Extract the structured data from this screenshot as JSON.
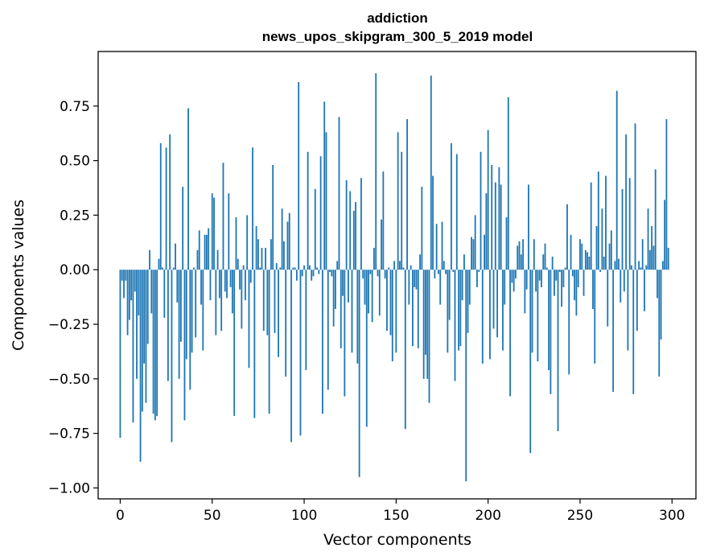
{
  "chart_data": {
    "type": "bar",
    "title": "addiction",
    "subtitle": "news_upos_skipgram_300_5_2019 model",
    "xlabel": "Vector components",
    "ylabel": "Components values",
    "xlim": [
      -12,
      313
    ],
    "ylim": [
      -1.05,
      1.0
    ],
    "xticks": [
      0,
      50,
      100,
      150,
      200,
      250,
      300
    ],
    "xtick_labels": [
      "0",
      "50",
      "100",
      "150",
      "200",
      "250",
      "300"
    ],
    "yticks": [
      0.75,
      0.5,
      0.25,
      0.0,
      -0.25,
      -0.5,
      -0.75,
      -1.0
    ],
    "ytick_labels": [
      "0.75",
      "0.50",
      "0.25",
      "0.00",
      "−0.25",
      "−0.50",
      "−0.75",
      "−1.00"
    ],
    "grid": false,
    "color": "#1f77b4",
    "values": [
      -0.77,
      -0.05,
      -0.13,
      -0.05,
      -0.3,
      -0.23,
      -0.14,
      -0.7,
      -0.1,
      -0.5,
      -0.21,
      -0.88,
      -0.65,
      -0.43,
      -0.61,
      -0.34,
      0.09,
      -0.2,
      -0.66,
      -0.69,
      -0.67,
      0.05,
      0.58,
      0.01,
      -0.22,
      0.56,
      -0.51,
      0.62,
      -0.79,
      0.01,
      0.12,
      -0.15,
      -0.5,
      -0.33,
      0.38,
      -0.69,
      -0.41,
      0.74,
      -0.55,
      -0.38,
      0.01,
      -0.31,
      0.09,
      0.18,
      -0.16,
      -0.37,
      0.16,
      0.16,
      0.19,
      -0.14,
      0.35,
      0.33,
      -0.3,
      0.09,
      -0.13,
      -0.28,
      0.49,
      -0.1,
      -0.13,
      0.35,
      -0.08,
      -0.2,
      -0.67,
      0.24,
      0.05,
      -0.09,
      -0.27,
      0.02,
      -0.14,
      0.25,
      -0.45,
      -0.06,
      0.56,
      -0.68,
      0.2,
      0.14,
      0.01,
      0.1,
      -0.28,
      0.1,
      -0.3,
      -0.66,
      0.14,
      0.48,
      -0.29,
      0.03,
      -0.4,
      0.01,
      0.28,
      0.13,
      -0.49,
      0.22,
      0.26,
      -0.79,
      0.01,
      0.01,
      -0.05,
      0.86,
      -0.76,
      -0.03,
      0.02,
      -0.46,
      0.54,
      0.02,
      -0.05,
      -0.03,
      0.37,
      0.01,
      -0.02,
      0.52,
      -0.66,
      0.77,
      0.63,
      -0.55,
      -0.01,
      -0.03,
      -0.26,
      -0.18,
      0.04,
      0.7,
      -0.36,
      -0.12,
      -0.58,
      0.41,
      -0.15,
      0.36,
      -0.38,
      0.27,
      0.31,
      -0.43,
      -0.95,
      0.42,
      -0.04,
      -0.16,
      -0.72,
      -0.2,
      -0.02,
      -0.24,
      0.1,
      0.9,
      -0.03,
      -0.21,
      0.23,
      0.45,
      -0.04,
      -0.28,
      0.01,
      -0.3,
      -0.42,
      0.04,
      -0.38,
      0.63,
      0.04,
      0.54,
      0.01,
      -0.73,
      0.69,
      -0.16,
      0.02,
      -0.35,
      -0.08,
      -0.09,
      -0.36,
      0.07,
      0.38,
      -0.5,
      -0.39,
      -0.5,
      -0.61,
      0.89,
      0.43,
      -0.04,
      0.21,
      -0.02,
      -0.16,
      0.22,
      0.04,
      -0.02,
      -0.38,
      -0.23,
      0.58,
      -0.01,
      -0.51,
      0.53,
      -0.37,
      -0.35,
      -0.14,
      0.07,
      -0.97,
      -0.29,
      -0.16,
      0.15,
      0.14,
      0.25,
      -0.08,
      -0.01,
      0.54,
      -0.43,
      0.16,
      0.35,
      0.64,
      -0.41,
      0.48,
      -0.27,
      0.4,
      -0.31,
      0.47,
      0.39,
      -0.37,
      -0.16,
      0.24,
      0.79,
      -0.58,
      -0.06,
      -0.1,
      -0.04,
      0.11,
      0.13,
      0.07,
      0.14,
      -0.2,
      -0.09,
      0.39,
      -0.84,
      -0.38,
      0.14,
      -0.1,
      -0.42,
      -0.05,
      -0.08,
      0.07,
      0.12,
      0.01,
      -0.46,
      -0.57,
      0.06,
      -0.12,
      -0.05,
      -0.74,
      -0.01,
      -0.17,
      -0.08,
      0.01,
      0.3,
      -0.48,
      0.16,
      -0.03,
      -0.14,
      -0.21,
      -0.08,
      0.14,
      0.12,
      -0.12,
      0.09,
      0.08,
      0.06,
      0.4,
      -0.18,
      -0.43,
      0.2,
      0.45,
      -0.01,
      0.28,
      0.06,
      0.43,
      -0.26,
      0.12,
      0.18,
      -0.56,
      0.04,
      0.82,
      0.05,
      -0.15,
      0.37,
      -0.1,
      0.62,
      -0.37,
      0.42,
      0.02,
      -0.57,
      0.67,
      -0.28,
      0.04,
      0.01,
      0.14,
      -0.19,
      0.02,
      0.28,
      0.09,
      0.2,
      0.11,
      0.46,
      -0.13,
      -0.49,
      -0.32,
      0.04,
      0.32,
      0.69,
      0.1
    ]
  }
}
